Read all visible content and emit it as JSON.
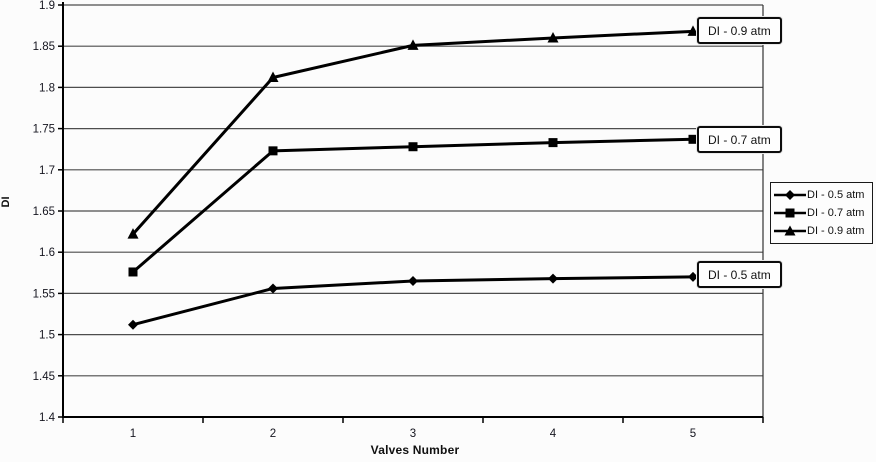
{
  "chart_data": {
    "type": "line",
    "title": "",
    "xlabel": "Valves Number",
    "ylabel": "DI",
    "x_categories": [
      "1",
      "2",
      "3",
      "4",
      "5"
    ],
    "ylim": [
      1.4,
      1.9
    ],
    "ytick_step": 0.05,
    "ytick_labels": [
      "1.9",
      "1.85",
      "1.8",
      "1.75",
      "1.7",
      "1.65",
      "1.6",
      "1.55",
      "1.5",
      "1.45",
      "1.4"
    ],
    "grid": "horizontal gridlines on",
    "legend_position": "right outside plot",
    "line_color": "#000000",
    "series": [
      {
        "name": "DI - 0.5 atm",
        "marker": "diamond",
        "color": "#000000",
        "values": [
          1.512,
          1.556,
          1.565,
          1.568,
          1.57
        ]
      },
      {
        "name": "DI - 0.7 atm",
        "marker": "square",
        "color": "#000000",
        "values": [
          1.576,
          1.723,
          1.728,
          1.733,
          1.737
        ]
      },
      {
        "name": "DI - 0.9 atm",
        "marker": "triangle",
        "color": "#000000",
        "values": [
          1.622,
          1.812,
          1.851,
          1.86,
          1.868
        ]
      }
    ],
    "annotations": [
      {
        "label": "DI - 0.9 atm",
        "series": "DI - 0.9 atm",
        "at_x": "5"
      },
      {
        "label": "DI - 0.7 atm",
        "series": "DI - 0.7 atm",
        "at_x": "5"
      },
      {
        "label": "DI - 0.5 atm",
        "series": "DI - 0.5 atm",
        "at_x": "5"
      }
    ]
  }
}
